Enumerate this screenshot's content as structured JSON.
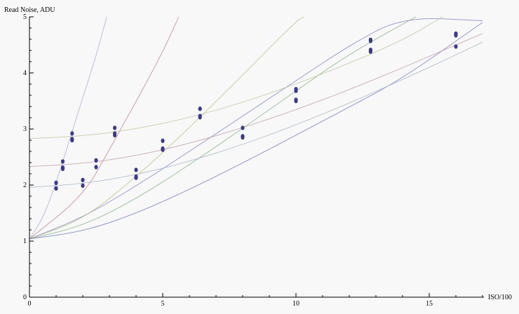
{
  "chart_data": {
    "type": "scatter",
    "title": "",
    "xlabel": "ISO/100",
    "ylabel": "Read Noise, ADU",
    "xlim": [
      0,
      17
    ],
    "ylim": [
      0,
      5
    ],
    "x_ticks_major": [
      "0",
      "5",
      "10",
      "15"
    ],
    "y_ticks_major": [
      "0",
      "1",
      "2",
      "3",
      "4",
      "5"
    ],
    "grid": false,
    "legend": "none",
    "points": [
      {
        "x": 1.0,
        "y": 2.04
      },
      {
        "x": 1.0,
        "y": 1.94
      },
      {
        "x": 1.25,
        "y": 2.42
      },
      {
        "x": 1.25,
        "y": 2.31
      },
      {
        "x": 1.25,
        "y": 2.29
      },
      {
        "x": 1.6,
        "y": 2.92
      },
      {
        "x": 1.6,
        "y": 2.82
      },
      {
        "x": 1.6,
        "y": 2.8
      },
      {
        "x": 2.0,
        "y": 2.09
      },
      {
        "x": 2.0,
        "y": 1.99
      },
      {
        "x": 2.5,
        "y": 2.44
      },
      {
        "x": 2.5,
        "y": 2.32
      },
      {
        "x": 3.2,
        "y": 3.02
      },
      {
        "x": 3.2,
        "y": 2.92
      },
      {
        "x": 3.2,
        "y": 2.89
      },
      {
        "x": 4.0,
        "y": 2.27
      },
      {
        "x": 4.0,
        "y": 2.15
      },
      {
        "x": 4.0,
        "y": 2.13
      },
      {
        "x": 5.0,
        "y": 2.79
      },
      {
        "x": 5.0,
        "y": 2.65
      },
      {
        "x": 5.0,
        "y": 2.63
      },
      {
        "x": 6.4,
        "y": 3.36
      },
      {
        "x": 6.4,
        "y": 3.23
      },
      {
        "x": 6.4,
        "y": 3.21
      },
      {
        "x": 8.0,
        "y": 3.02
      },
      {
        "x": 8.0,
        "y": 2.87
      },
      {
        "x": 8.0,
        "y": 2.85
      },
      {
        "x": 10.0,
        "y": 3.71
      },
      {
        "x": 10.0,
        "y": 3.68
      },
      {
        "x": 10.0,
        "y": 3.52
      },
      {
        "x": 10.0,
        "y": 3.5
      },
      {
        "x": 12.8,
        "y": 4.59
      },
      {
        "x": 12.8,
        "y": 4.57
      },
      {
        "x": 12.8,
        "y": 4.41
      },
      {
        "x": 12.8,
        "y": 4.38
      },
      {
        "x": 16.0,
        "y": 4.7
      },
      {
        "x": 16.0,
        "y": 4.67
      },
      {
        "x": 16.0,
        "y": 4.47
      }
    ],
    "curves": [
      {
        "color": "#7b7fc8",
        "points": [
          [
            0,
            1.04
          ],
          [
            2,
            1.42
          ],
          [
            4,
            1.98
          ],
          [
            6,
            2.6
          ],
          [
            8,
            3.23
          ],
          [
            10,
            3.86
          ],
          [
            12,
            4.49
          ],
          [
            14,
            5.11
          ],
          [
            17,
            4.93
          ]
        ]
      },
      {
        "color": "#c07c92",
        "points": [
          [
            0,
            1.04
          ],
          [
            2,
            1.8
          ],
          [
            3,
            2.63
          ],
          [
            4,
            3.49
          ],
          [
            5,
            4.37
          ],
          [
            5.6,
            5.0
          ]
        ]
      },
      {
        "color": "#b5c07c",
        "points": [
          [
            0,
            1.04
          ],
          [
            2,
            1.38
          ],
          [
            4,
            2.14
          ],
          [
            6,
            3.02
          ],
          [
            8,
            3.96
          ],
          [
            10,
            4.92
          ],
          [
            10.3,
            5.0
          ]
        ]
      },
      {
        "color": "#7fb07f",
        "points": [
          [
            0,
            1.04
          ],
          [
            2,
            1.27
          ],
          [
            4,
            1.75
          ],
          [
            6,
            2.36
          ],
          [
            8,
            3.01
          ],
          [
            10,
            3.68
          ],
          [
            12,
            4.34
          ],
          [
            14.5,
            5.0
          ]
        ]
      },
      {
        "color": "#6a74c4",
        "points": [
          [
            0,
            1.04
          ],
          [
            2,
            1.17
          ],
          [
            4,
            1.49
          ],
          [
            6,
            1.92
          ],
          [
            8,
            2.39
          ],
          [
            10,
            2.89
          ],
          [
            12,
            3.39
          ],
          [
            14,
            3.9
          ],
          [
            17,
            4.9
          ]
        ]
      },
      {
        "color": "#a7a8d6",
        "points": [
          [
            0,
            1.04
          ],
          [
            0.5,
            1.4
          ],
          [
            1,
            2.04
          ],
          [
            1.5,
            2.8
          ],
          [
            2,
            3.56
          ],
          [
            2.5,
            4.3
          ],
          [
            2.9,
            5.0
          ]
        ]
      },
      {
        "color": "#c09aa8",
        "points": [
          [
            0,
            2.33
          ],
          [
            2,
            2.38
          ],
          [
            4,
            2.52
          ],
          [
            6,
            2.74
          ],
          [
            8,
            3.02
          ],
          [
            10,
            3.34
          ],
          [
            12,
            3.7
          ],
          [
            14,
            4.09
          ],
          [
            16,
            4.5
          ],
          [
            17,
            4.7
          ]
        ]
      },
      {
        "color": "#a4b4c4",
        "points": [
          [
            0,
            1.96
          ],
          [
            2,
            2.02
          ],
          [
            4,
            2.18
          ],
          [
            6,
            2.42
          ],
          [
            8,
            2.72
          ],
          [
            10,
            3.07
          ],
          [
            12,
            3.46
          ],
          [
            14,
            3.88
          ],
          [
            16,
            4.32
          ],
          [
            17,
            4.55
          ]
        ]
      },
      {
        "color": "#b8c49a",
        "points": [
          [
            0,
            2.83
          ],
          [
            2,
            2.87
          ],
          [
            4,
            3.0
          ],
          [
            6,
            3.2
          ],
          [
            8,
            3.47
          ],
          [
            10,
            3.8
          ],
          [
            12,
            4.17
          ],
          [
            14,
            4.58
          ],
          [
            15.5,
            5.0
          ]
        ]
      }
    ]
  }
}
